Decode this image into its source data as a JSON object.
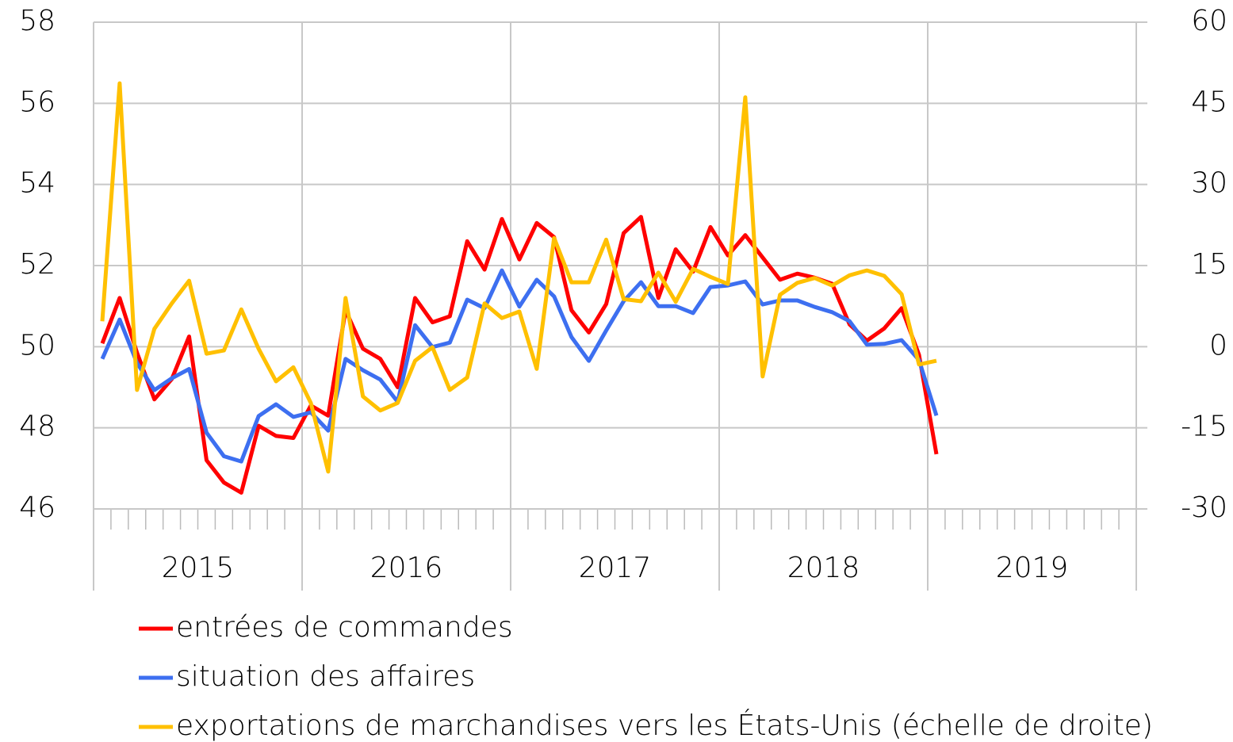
{
  "chart_data": {
    "type": "line",
    "categories": [
      null,
      null,
      null,
      null,
      null,
      null,
      null,
      null,
      null,
      null,
      null,
      null,
      null,
      null,
      null,
      null,
      null,
      null,
      null,
      null,
      null,
      null,
      null,
      null,
      null,
      null,
      null,
      null,
      null,
      null,
      null,
      null,
      null,
      null,
      null,
      null,
      null,
      null,
      null,
      null,
      null,
      null,
      null,
      null,
      null,
      null,
      null,
      null,
      null,
      null,
      null,
      null,
      null,
      null,
      null,
      null,
      null,
      null,
      null,
      null
    ],
    "year_labels": [
      "2015",
      "2016",
      "2017",
      "2018",
      "2019"
    ],
    "series": [
      {
        "name": "entrées de commandes",
        "color": "#ff0000",
        "values": [
          50.08,
          51.2,
          49.85,
          48.7,
          49.2,
          50.25,
          47.2,
          46.65,
          46.4,
          48.05,
          47.8,
          47.75,
          48.55,
          48.3,
          50.9,
          49.95,
          49.7,
          49.0,
          51.2,
          50.6,
          50.75,
          52.6,
          51.9,
          53.15,
          52.15,
          53.05,
          52.7,
          50.9,
          50.35,
          51.05,
          52.8,
          53.2,
          51.2,
          52.4,
          51.85,
          52.95,
          52.25,
          52.75,
          52.2,
          51.65,
          51.8,
          51.7,
          51.55,
          50.55,
          50.15,
          50.45,
          50.95,
          49.8,
          47.35,
          null,
          null,
          null,
          null,
          null,
          null,
          null,
          null,
          null,
          null,
          null
        ]
      },
      {
        "name": "situation des affaires",
        "color": "#3d6ff0",
        "values": [
          49.7,
          50.67,
          49.6,
          48.93,
          49.22,
          49.45,
          47.88,
          47.3,
          47.17,
          48.29,
          48.58,
          48.27,
          48.38,
          47.93,
          49.7,
          49.42,
          49.19,
          48.64,
          50.53,
          49.99,
          50.1,
          51.16,
          50.95,
          51.88,
          50.99,
          51.65,
          51.24,
          50.24,
          49.65,
          50.4,
          51.12,
          51.59,
          51.0,
          51.0,
          50.83,
          51.47,
          51.51,
          51.61,
          51.04,
          51.14,
          51.14,
          50.98,
          50.85,
          50.63,
          50.05,
          50.07,
          50.16,
          49.67,
          48.3,
          null,
          null,
          null,
          null,
          null,
          null,
          null,
          null,
          null,
          null,
          null
        ]
      },
      {
        "name": "exportations de marchandises vers les États-Unis (échelle de droite)",
        "color": "#ffc000",
        "axis": "y2",
        "values": [
          4.7,
          48.7,
          -8.0,
          3.3,
          8.0,
          12.2,
          -1.3,
          -0.7,
          6.9,
          -0.4,
          -6.4,
          -3.8,
          -10.4,
          -23.1,
          9.0,
          -9.2,
          -11.8,
          -10.4,
          -2.6,
          -0.1,
          -8.0,
          -5.7,
          8.0,
          5.3,
          6.5,
          -4.1,
          20.1,
          11.9,
          11.9,
          19.8,
          8.8,
          8.4,
          13.7,
          8.3,
          14.4,
          12.9,
          11.6,
          46.1,
          -5.5,
          9.6,
          11.8,
          12.7,
          11.3,
          13.2,
          14.1,
          13.1,
          9.7,
          -3.3,
          -2.6,
          null,
          null,
          null,
          null,
          null,
          null,
          null,
          null,
          null,
          null,
          null
        ]
      }
    ],
    "ylim": [
      46,
      58
    ],
    "yticks": [
      46,
      48,
      50,
      52,
      54,
      56,
      58
    ],
    "y2lim": [
      -30,
      60
    ],
    "y2ticks": [
      -30,
      -15,
      0,
      15,
      30,
      45,
      60
    ],
    "grid": true
  }
}
